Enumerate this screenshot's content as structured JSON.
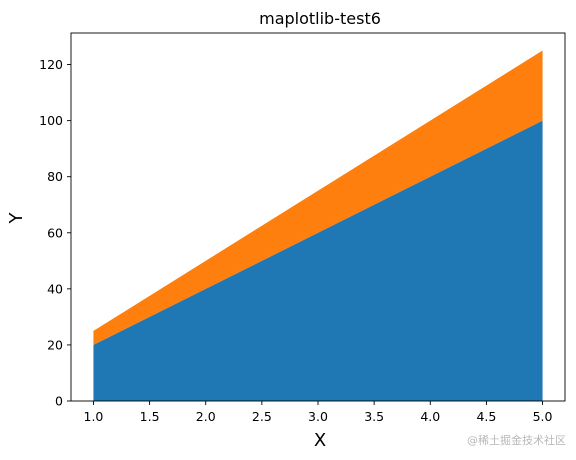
{
  "chart_data": {
    "type": "area",
    "stacked": true,
    "title": "maplotlib-test6",
    "xlabel": "X",
    "ylabel": "Y",
    "x": [
      1,
      5
    ],
    "series": [
      {
        "values": [
          20,
          100
        ],
        "color": "#1f77b4"
      },
      {
        "values": [
          5,
          25
        ],
        "color": "#ff7f0e"
      }
    ],
    "xlim": [
      0.8,
      5.2
    ],
    "ylim": [
      0,
      131.25
    ],
    "xticks": [
      1.0,
      1.5,
      2.0,
      2.5,
      3.0,
      3.5,
      4.0,
      4.5,
      5.0
    ],
    "xtick_labels": [
      "1.0",
      "1.5",
      "2.0",
      "2.5",
      "3.0",
      "3.5",
      "4.0",
      "4.5",
      "5.0"
    ],
    "yticks": [
      0,
      20,
      40,
      60,
      80,
      100,
      120
    ],
    "ytick_labels": [
      "0",
      "20",
      "40",
      "60",
      "80",
      "100",
      "120"
    ],
    "grid": false,
    "legend": "none"
  },
  "watermark": "@稀土掘金技术社区"
}
